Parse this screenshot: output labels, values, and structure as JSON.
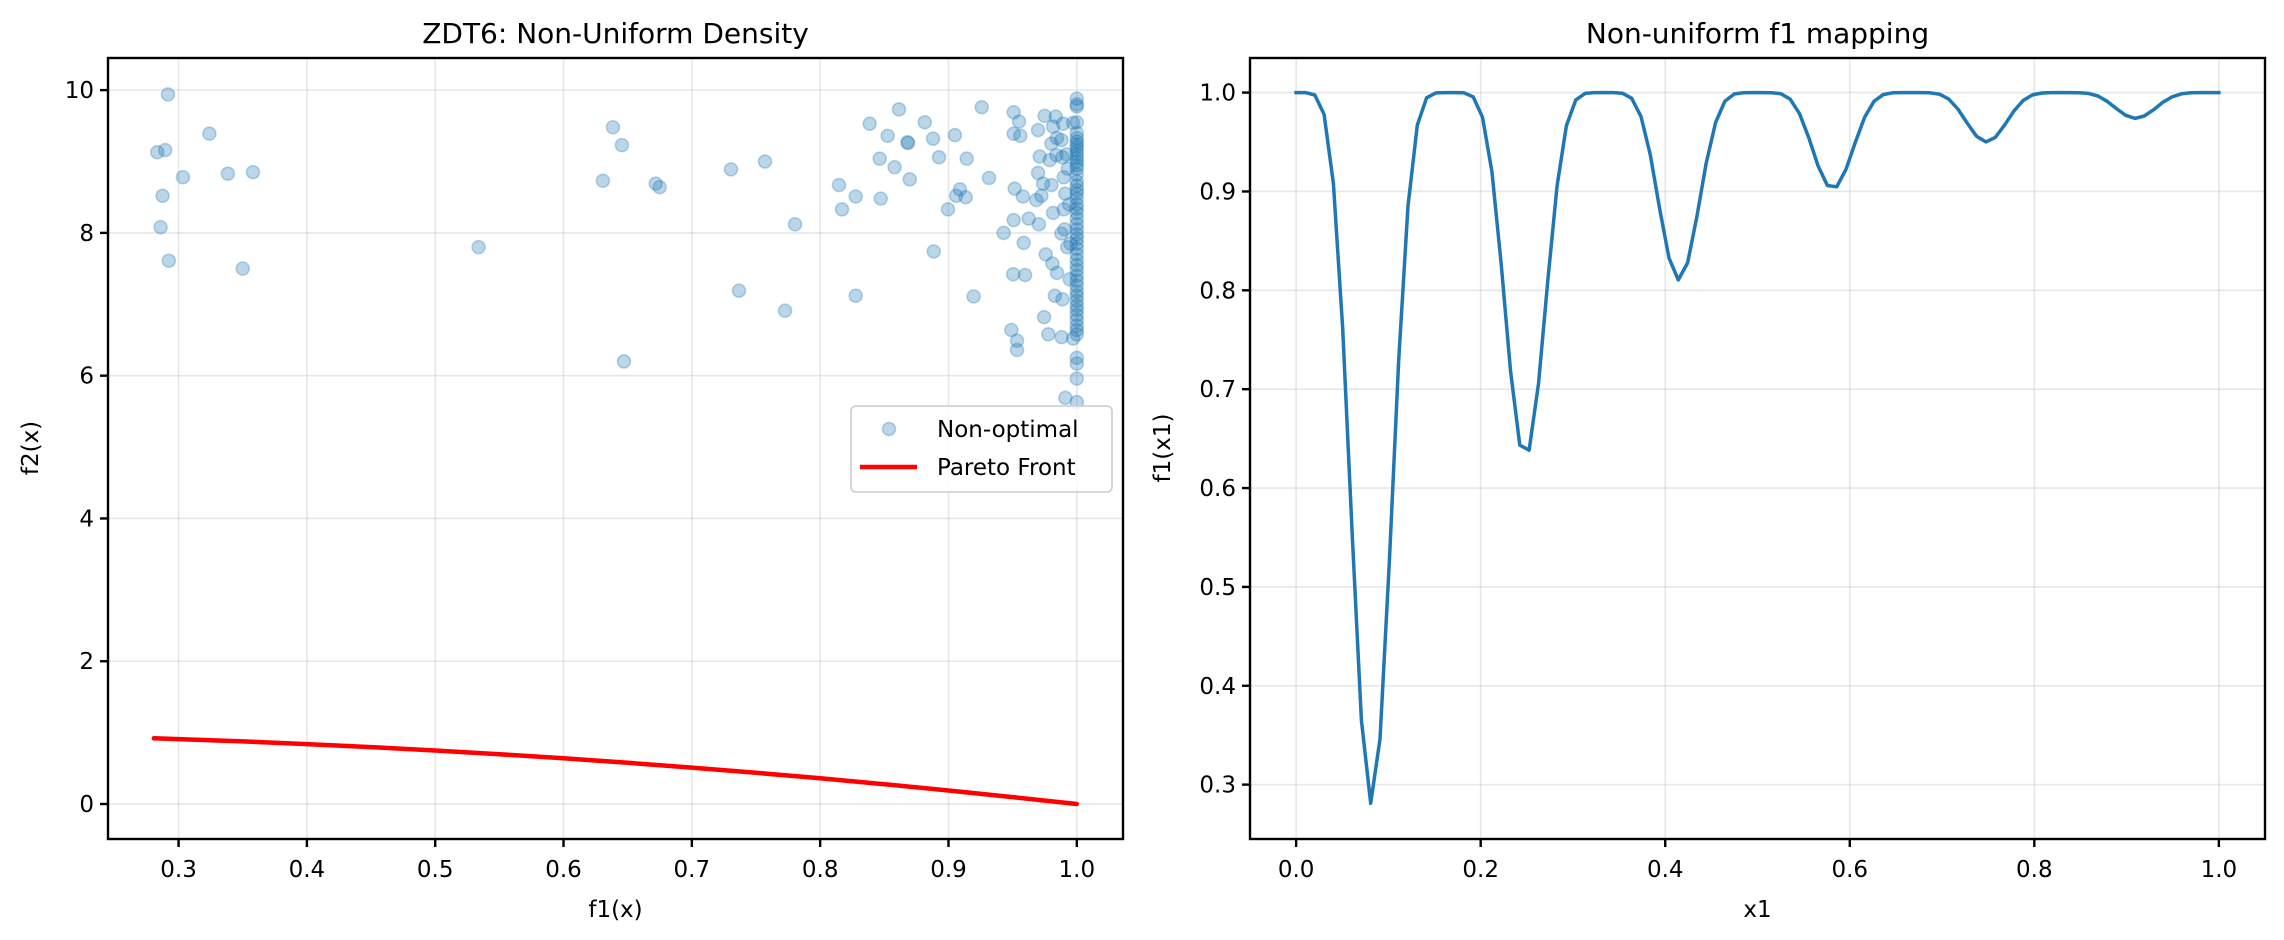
{
  "chart_data": [
    {
      "type": "scatter",
      "title": "ZDT6: Non-Uniform Density",
      "xlabel": "f1(x)",
      "ylabel": "f2(x)",
      "xlim": [
        0.245,
        1.036
      ],
      "ylim": [
        -0.49,
        10.45
      ],
      "xticks": [
        0.3,
        0.4,
        0.5,
        0.6,
        0.7,
        0.8,
        0.9,
        1.0
      ],
      "xtick_labels": [
        "0.3",
        "0.4",
        "0.5",
        "0.6",
        "0.7",
        "0.8",
        "0.9",
        "1.0"
      ],
      "yticks": [
        0,
        2,
        4,
        6,
        8,
        10
      ],
      "ytick_labels": [
        "0",
        "2",
        "4",
        "6",
        "8",
        "10"
      ],
      "grid": true,
      "legend": {
        "placement": "center-right",
        "entries": [
          "Non-optimal",
          "Pareto Front"
        ]
      },
      "series": [
        {
          "name": "Non-optimal",
          "kind": "scatter",
          "color": "#1f77b4",
          "alpha": 0.3,
          "points": [
            [
              0.2917,
              9.94
            ],
            [
              0.324,
              9.39
            ],
            [
              0.2834,
              9.13
            ],
            [
              0.2896,
              9.16
            ],
            [
              0.3034,
              8.78
            ],
            [
              0.3384,
              8.83
            ],
            [
              0.358,
              8.85
            ],
            [
              0.2875,
              8.52
            ],
            [
              0.286,
              8.08
            ],
            [
              0.2924,
              7.61
            ],
            [
              0.35,
              7.5
            ],
            [
              0.5338,
              7.8
            ],
            [
              0.6385,
              9.48
            ],
            [
              0.6455,
              9.23
            ],
            [
              0.6307,
              8.73
            ],
            [
              0.6718,
              8.69
            ],
            [
              0.6749,
              8.64
            ],
            [
              0.7305,
              8.89
            ],
            [
              0.757,
              9.0
            ],
            [
              0.7804,
              8.12
            ],
            [
              0.7367,
              7.19
            ],
            [
              0.7726,
              6.91
            ],
            [
              0.6471,
              6.2
            ],
            [
              0.8386,
              9.53
            ],
            [
              0.8526,
              9.36
            ],
            [
              0.8464,
              9.04
            ],
            [
              0.858,
              8.92
            ],
            [
              0.8147,
              8.67
            ],
            [
              0.8277,
              8.51
            ],
            [
              0.8472,
              8.48
            ],
            [
              0.817,
              8.33
            ],
            [
              0.8277,
              7.12
            ],
            [
              0.8614,
              9.73
            ],
            [
              0.8815,
              9.55
            ],
            [
              0.868,
              9.27
            ],
            [
              0.8685,
              9.26
            ],
            [
              0.888,
              9.32
            ],
            [
              0.905,
              9.37
            ],
            [
              0.9259,
              9.76
            ],
            [
              0.8698,
              8.75
            ],
            [
              0.8926,
              9.06
            ],
            [
              0.9142,
              9.04
            ],
            [
              0.9316,
              8.77
            ],
            [
              0.9089,
              8.61
            ],
            [
              0.906,
              8.52
            ],
            [
              0.9134,
              8.5
            ],
            [
              0.8996,
              8.33
            ],
            [
              0.8885,
              7.74
            ],
            [
              0.943,
              8.0
            ],
            [
              0.9586,
              7.86
            ],
            [
              0.9508,
              9.69
            ],
            [
              0.955,
              9.56
            ],
            [
              0.9508,
              9.39
            ],
            [
              0.956,
              9.36
            ],
            [
              0.9516,
              8.62
            ],
            [
              0.958,
              8.51
            ],
            [
              0.9685,
              8.46
            ],
            [
              0.9724,
              8.52
            ],
            [
              0.9508,
              8.18
            ],
            [
              0.9625,
              8.2
            ],
            [
              0.9705,
              8.12
            ],
            [
              0.9698,
              9.44
            ],
            [
              0.975,
              9.64
            ],
            [
              0.9836,
              9.63
            ],
            [
              0.9893,
              9.53
            ],
            [
              0.9971,
              9.54
            ],
            [
              0.9815,
              9.49
            ],
            [
              0.9711,
              9.07
            ],
            [
              0.9789,
              9.02
            ],
            [
              0.9698,
              8.84
            ],
            [
              0.9737,
              8.69
            ],
            [
              0.9802,
              8.67
            ],
            [
              0.9898,
              8.78
            ],
            [
              0.9815,
              8.28
            ],
            [
              0.9898,
              8.33
            ],
            [
              0.988,
              7.99
            ],
            [
              0.9758,
              7.7
            ],
            [
              0.9802,
              9.25
            ],
            [
              0.988,
              9.3
            ],
            [
              0.9841,
              9.09
            ],
            [
              0.9888,
              9.06
            ],
            [
              0.9845,
              9.33
            ],
            [
              0.992,
              9.1
            ],
            [
              0.993,
              8.9
            ],
            [
              0.991,
              8.55
            ],
            [
              0.994,
              8.4
            ],
            [
              0.9905,
              8.05
            ],
            [
              0.995,
              7.85
            ],
            [
              0.9925,
              7.8
            ],
            [
              0.9504,
              7.42
            ],
            [
              0.9597,
              7.41
            ],
            [
              0.9196,
              7.11
            ],
            [
              0.981,
              7.57
            ],
            [
              0.9846,
              7.44
            ],
            [
              0.9945,
              7.35
            ],
            [
              0.9829,
              7.12
            ],
            [
              0.9888,
              7.07
            ],
            [
              0.9745,
              6.82
            ],
            [
              0.949,
              6.64
            ],
            [
              0.9534,
              6.49
            ],
            [
              0.9534,
              6.36
            ],
            [
              0.9778,
              6.58
            ],
            [
              0.9882,
              6.54
            ],
            [
              0.9971,
              6.52
            ],
            [
              0.9911,
              5.69
            ],
            [
              1.0,
              9.88
            ],
            [
              1.0,
              9.8
            ],
            [
              1.0,
              9.77
            ],
            [
              1.0,
              9.55
            ],
            [
              1.0,
              9.4
            ],
            [
              1.0,
              9.33
            ],
            [
              1.0,
              9.28
            ],
            [
              1.0,
              9.24
            ],
            [
              1.0,
              9.2
            ],
            [
              1.0,
              9.15
            ],
            [
              1.0,
              9.1
            ],
            [
              1.0,
              9.05
            ],
            [
              1.0,
              9.0
            ],
            [
              1.0,
              8.95
            ],
            [
              1.0,
              8.9
            ],
            [
              1.0,
              8.82
            ],
            [
              1.0,
              8.72
            ],
            [
              1.0,
              8.66
            ],
            [
              1.0,
              8.6
            ],
            [
              1.0,
              8.55
            ],
            [
              1.0,
              8.48
            ],
            [
              1.0,
              8.4
            ],
            [
              1.0,
              8.34
            ],
            [
              1.0,
              8.28
            ],
            [
              1.0,
              8.2
            ],
            [
              1.0,
              8.12
            ],
            [
              1.0,
              8.05
            ],
            [
              1.0,
              7.98
            ],
            [
              1.0,
              7.92
            ],
            [
              1.0,
              7.85
            ],
            [
              1.0,
              7.78
            ],
            [
              1.0,
              7.7
            ],
            [
              1.0,
              7.62
            ],
            [
              1.0,
              7.55
            ],
            [
              1.0,
              7.48
            ],
            [
              1.0,
              7.4
            ],
            [
              1.0,
              7.33
            ],
            [
              1.0,
              7.26
            ],
            [
              1.0,
              7.18
            ],
            [
              1.0,
              7.12
            ],
            [
              1.0,
              7.05
            ],
            [
              1.0,
              6.98
            ],
            [
              1.0,
              6.92
            ],
            [
              1.0,
              6.85
            ],
            [
              1.0,
              6.78
            ],
            [
              1.0,
              6.7
            ],
            [
              1.0,
              6.64
            ],
            [
              1.0,
              6.58
            ],
            [
              1.0,
              6.25
            ],
            [
              1.0,
              6.17
            ],
            [
              1.0,
              5.96
            ],
            [
              1.0,
              5.63
            ]
          ]
        },
        {
          "name": "Pareto Front",
          "kind": "line",
          "color": "#ff0000",
          "formula": "f2 = 1 - f1^2",
          "f1": [
            0.2808,
            0.3,
            0.35,
            0.4,
            0.45,
            0.5,
            0.55,
            0.6,
            0.65,
            0.7,
            0.75,
            0.8,
            0.85,
            0.9,
            0.95,
            1.0
          ],
          "f2": [
            0.9211,
            0.91,
            0.8775,
            0.84,
            0.7975,
            0.75,
            0.6975,
            0.64,
            0.5775,
            0.51,
            0.4375,
            0.36,
            0.2775,
            0.19,
            0.0975,
            0.0
          ]
        }
      ]
    },
    {
      "type": "line",
      "title": "Non-uniform f1 mapping",
      "xlabel": "x1",
      "ylabel": "f1(x1)",
      "xlim": [
        -0.05,
        1.05
      ],
      "ylim": [
        0.245,
        1.035
      ],
      "xticks": [
        0.0,
        0.2,
        0.4,
        0.6,
        0.8,
        1.0
      ],
      "xtick_labels": [
        "0.0",
        "0.2",
        "0.4",
        "0.6",
        "0.8",
        "1.0"
      ],
      "yticks": [
        0.3,
        0.4,
        0.5,
        0.6,
        0.7,
        0.8,
        0.9,
        1.0
      ],
      "ytick_labels": [
        "0.3",
        "0.4",
        "0.5",
        "0.6",
        "0.7",
        "0.8",
        "0.9",
        "1.0"
      ],
      "grid": true,
      "series": [
        {
          "name": "f1(x1)",
          "color": "#1f77b4",
          "x_range": [
            0,
            1
          ],
          "n_points": 100,
          "values": [
            1.0,
            1.0,
            0.9976,
            0.9779,
            0.9081,
            0.7613,
            0.5555,
            0.3652,
            0.2811,
            0.3462,
            0.5245,
            0.7295,
            0.8853,
            0.967,
            0.9947,
            0.9997,
            1.0,
            1.0,
            0.9998,
            0.9957,
            0.9751,
            0.9202,
            0.8266,
            0.7188,
            0.6434,
            0.6383,
            0.7054,
            0.8097,
            0.9058,
            0.9665,
            0.9926,
            0.9992,
            1.0,
            1.0,
            1.0,
            0.9994,
            0.9942,
            0.9758,
            0.9371,
            0.8828,
            0.8327,
            0.8105,
            0.8277,
            0.8747,
            0.9287,
            0.9698,
            0.9913,
            0.9986,
            0.9999,
            1.0,
            1.0,
            0.9999,
            0.9989,
            0.9934,
            0.979,
            0.9543,
            0.9259,
            0.906,
            0.9047,
            0.9224,
            0.9499,
            0.9752,
            0.9912,
            0.998,
            0.9998,
            1.0,
            1.0,
            1.0,
            0.9998,
            0.9985,
            0.9936,
            0.9834,
            0.9691,
            0.9559,
            0.9501,
            0.9546,
            0.967,
            0.9812,
            0.992,
            0.9977,
            0.9996,
            1.0,
            1.0,
            1.0,
            0.9999,
            0.9992,
            0.9967,
            0.9913,
            0.9839,
            0.977,
            0.9739,
            0.9763,
            0.9827,
            0.9902,
            0.9958,
            0.9988,
            0.9998,
            1.0,
            1.0,
            1.0
          ]
        }
      ]
    }
  ]
}
